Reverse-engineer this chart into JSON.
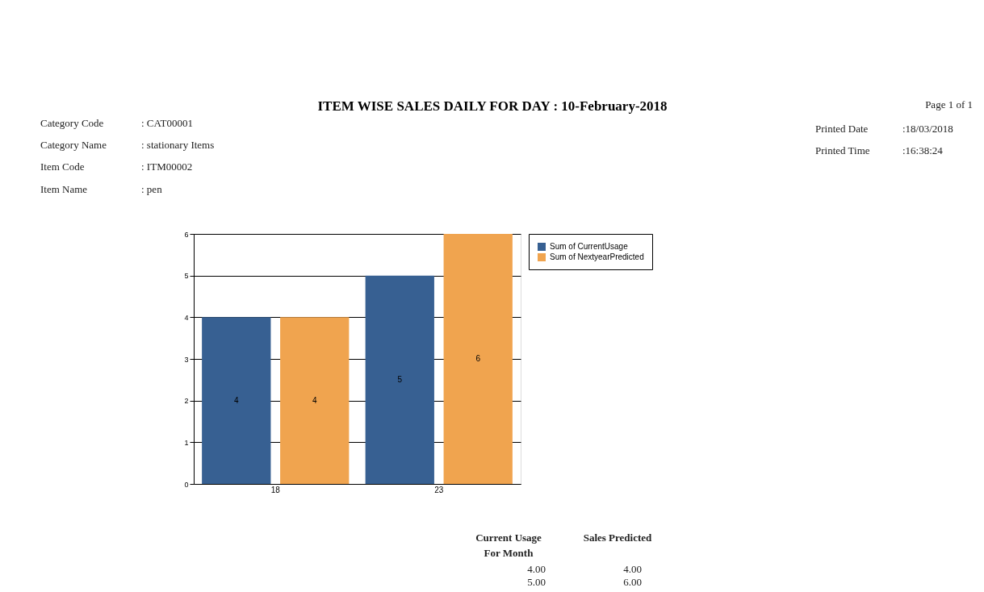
{
  "chart_data": {
    "type": "bar",
    "title": "ITEM WISE SALES DAILY FOR DAY : 10-February-2018",
    "categories": [
      "18",
      "23"
    ],
    "series": [
      {
        "name": "Sum of CurrentUsage",
        "color": "#376092",
        "values": [
          4,
          5
        ]
      },
      {
        "name": "Sum of NextyearPredicted",
        "color": "#f0a44f",
        "values": [
          4,
          6
        ]
      }
    ],
    "ylim": [
      0,
      6
    ],
    "yticks": [
      0,
      1,
      2,
      3,
      4,
      5,
      6
    ],
    "grid": "y",
    "legend": "right",
    "data_labels": true,
    "annotations": [
      "Category Code",
      ": CAT00001",
      "Category Name",
      ": stationary Items",
      "Item Code",
      ": ITM00002",
      "Item Name",
      ": pen",
      "Page 1 of 1",
      "Printed Date",
      ":18/03/2018",
      "Printed Time",
      ":16:38:24",
      "Current Usage",
      "For Month",
      "Sales Predicted",
      "4.00",
      "4.00",
      "5.00",
      "6.00"
    ]
  }
}
